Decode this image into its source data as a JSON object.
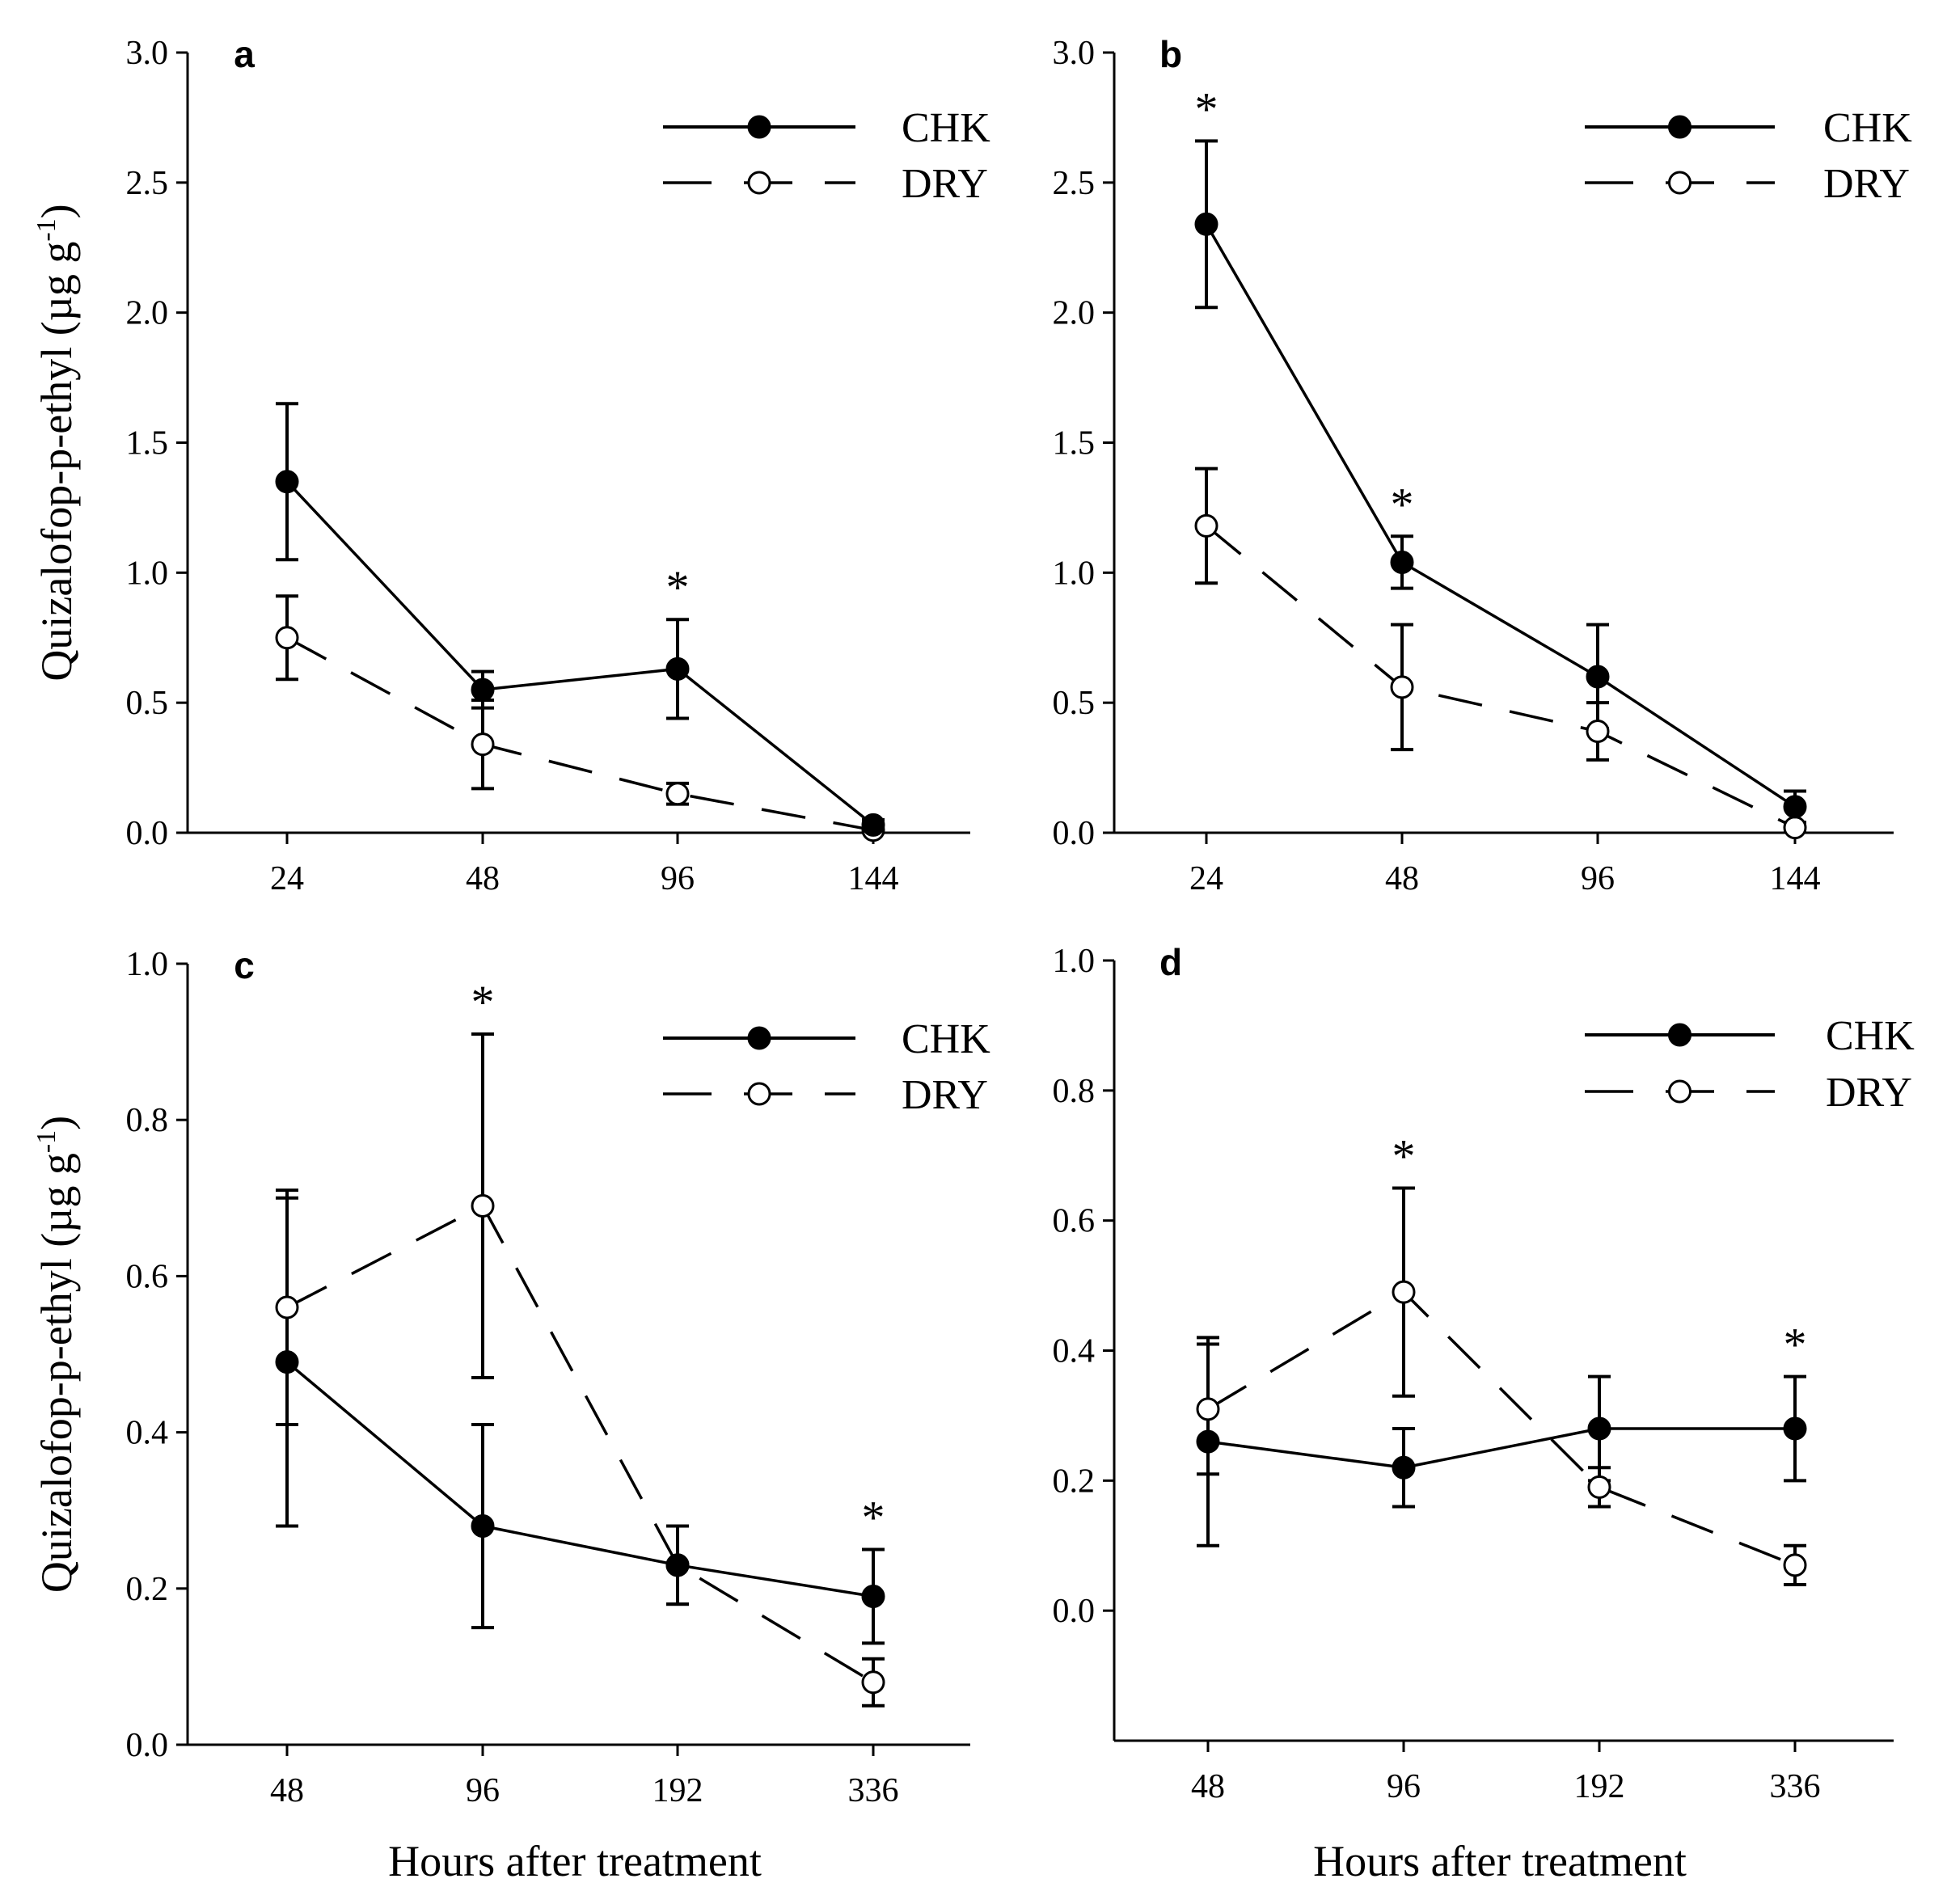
{
  "figure": {
    "x_axis_title": "Hours after treatment",
    "y_axis_title": "Quizalofop-p-ethyl (µg g",
    "y_axis_title_exponent": "-1",
    "y_axis_title_close": ")"
  },
  "chart_data": [
    {
      "type": "line",
      "panel": "a",
      "categories": [
        "24",
        "48",
        "96",
        "144"
      ],
      "ylim": [
        0,
        3
      ],
      "yticks": [
        "0.0",
        "0.5",
        "1.0",
        "1.5",
        "2.0",
        "2.5",
        "3.0"
      ],
      "xlabel": "",
      "ylabel": "Quizalofop-p-ethyl (µg g-1)",
      "legend": [
        "CHK",
        "DRY"
      ],
      "series": [
        {
          "name": "CHK",
          "values": [
            1.35,
            0.55,
            0.63,
            0.03
          ],
          "errors": [
            0.3,
            0.07,
            0.19,
            0.02
          ]
        },
        {
          "name": "DRY",
          "values": [
            0.75,
            0.34,
            0.15,
            0.01
          ],
          "errors": [
            0.16,
            0.17,
            0.04,
            0.01
          ]
        }
      ],
      "significance": [
        "",
        "",
        "*",
        ""
      ]
    },
    {
      "type": "line",
      "panel": "b",
      "categories": [
        "24",
        "48",
        "96",
        "144"
      ],
      "ylim": [
        0,
        3
      ],
      "yticks": [
        "0.0",
        "0.5",
        "1.0",
        "1.5",
        "2.0",
        "2.5",
        "3.0"
      ],
      "xlabel": "",
      "ylabel": "",
      "legend": [
        "CHK",
        "DRY"
      ],
      "series": [
        {
          "name": "CHK",
          "values": [
            2.34,
            1.04,
            0.6,
            0.1
          ],
          "errors": [
            0.32,
            0.1,
            0.2,
            0.06
          ]
        },
        {
          "name": "DRY",
          "values": [
            1.18,
            0.56,
            0.39,
            0.02
          ],
          "errors": [
            0.22,
            0.24,
            0.11,
            0.01
          ]
        }
      ],
      "significance": [
        "*",
        "*",
        "",
        ""
      ]
    },
    {
      "type": "line",
      "panel": "c",
      "categories": [
        "48",
        "96",
        "192",
        "336"
      ],
      "ylim": [
        0,
        1
      ],
      "yticks": [
        "0.0",
        "0.2",
        "0.4",
        "0.6",
        "0.8",
        "1.0"
      ],
      "xlabel": "Hours after treatment",
      "ylabel": "Quizalofop-p-ethyl (µg g-1)",
      "legend": [
        "CHK",
        "DRY"
      ],
      "series": [
        {
          "name": "CHK",
          "values": [
            0.49,
            0.28,
            0.23,
            0.19
          ],
          "errors": [
            0.21,
            0.13,
            0.05,
            0.06
          ]
        },
        {
          "name": "DRY",
          "values": [
            0.56,
            0.69,
            0.23,
            0.08
          ],
          "errors": [
            0.15,
            0.22,
            0.05,
            0.03
          ]
        }
      ],
      "significance": [
        "",
        "*",
        "",
        "*"
      ]
    },
    {
      "type": "line",
      "panel": "d",
      "categories": [
        "48",
        "96",
        "192",
        "336"
      ],
      "ylim": [
        -0.2,
        1
      ],
      "yticks": [
        "0.0",
        "0.2",
        "0.4",
        "0.6",
        "0.8",
        "1.0"
      ],
      "xlabel": "Hours after treatment",
      "ylabel": "",
      "legend": [
        "CHK",
        "DRY"
      ],
      "series": [
        {
          "name": "CHK",
          "values": [
            0.26,
            0.22,
            0.28,
            0.28
          ],
          "errors": [
            0.16,
            0.06,
            0.08,
            0.08
          ]
        },
        {
          "name": "DRY",
          "values": [
            0.31,
            0.49,
            0.19,
            0.07
          ],
          "errors": [
            0.1,
            0.16,
            0.03,
            0.03
          ]
        }
      ],
      "significance": [
        "",
        "*",
        "",
        "*"
      ]
    }
  ]
}
